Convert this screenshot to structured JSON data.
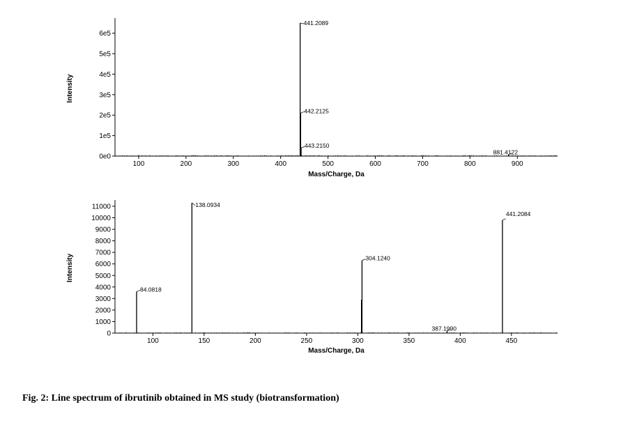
{
  "caption": "Fig. 2: Line spectrum of ibrutinib obtained in MS study (biotransformation)",
  "chart_data": [
    {
      "type": "bar",
      "subtype": "mass-spectrum-stick",
      "xlabel": "Mass/Charge, Da",
      "ylabel": "Intensity",
      "xlim": [
        50,
        985
      ],
      "ylim": [
        0,
        660000
      ],
      "x_ticks": [
        100,
        200,
        300,
        400,
        500,
        600,
        700,
        800,
        900
      ],
      "x_tick_labels": [
        "100",
        "200",
        "300",
        "400",
        "500",
        "600",
        "700",
        "800",
        "900"
      ],
      "y_ticks": [
        0,
        100000,
        200000,
        300000,
        400000,
        500000,
        600000
      ],
      "y_tick_labels": [
        "0e0",
        "1e5",
        "2e5",
        "3e5",
        "4e5",
        "5e5",
        "6e5"
      ],
      "peaks": [
        {
          "mz": 441.2089,
          "label": "441.2089",
          "intensity": 650000
        },
        {
          "mz": 442.2125,
          "label": "442.2125",
          "intensity": 210000
        },
        {
          "mz": 443.215,
          "label": "443.2150",
          "intensity": 40000
        },
        {
          "mz": 881.4122,
          "label": "881.4122",
          "intensity": 8000
        }
      ]
    },
    {
      "type": "bar",
      "subtype": "mass-spectrum-stick",
      "xlabel": "Mass/Charge, Da",
      "ylabel": "Intensity",
      "xlim": [
        63,
        495
      ],
      "ylim": [
        0,
        11300
      ],
      "x_ticks": [
        100,
        150,
        200,
        250,
        300,
        350,
        400,
        450
      ],
      "x_tick_labels": [
        "100",
        "150",
        "200",
        "250",
        "300",
        "350",
        "400",
        "450"
      ],
      "y_ticks": [
        0,
        1000,
        2000,
        3000,
        4000,
        5000,
        6000,
        7000,
        8000,
        9000,
        10000,
        11000
      ],
      "y_tick_labels": [
        "0",
        "1000",
        "2000",
        "3000",
        "4000",
        "5000",
        "6000",
        "7000",
        "8000",
        "9000",
        "10000",
        "11000"
      ],
      "peaks": [
        {
          "mz": 84.0818,
          "label": "84.0818",
          "intensity": 3600
        },
        {
          "mz": 138.0934,
          "label": "138.0934",
          "intensity": 11300
        },
        {
          "mz": 304.124,
          "label": "304.1240",
          "intensity": 6300
        },
        {
          "mz": 303.6,
          "label": "",
          "intensity": 2900
        },
        {
          "mz": 387.199,
          "label": "387.1990",
          "intensity": 200
        },
        {
          "mz": 441.2084,
          "label": "441.2084",
          "intensity": 9800
        }
      ]
    }
  ]
}
